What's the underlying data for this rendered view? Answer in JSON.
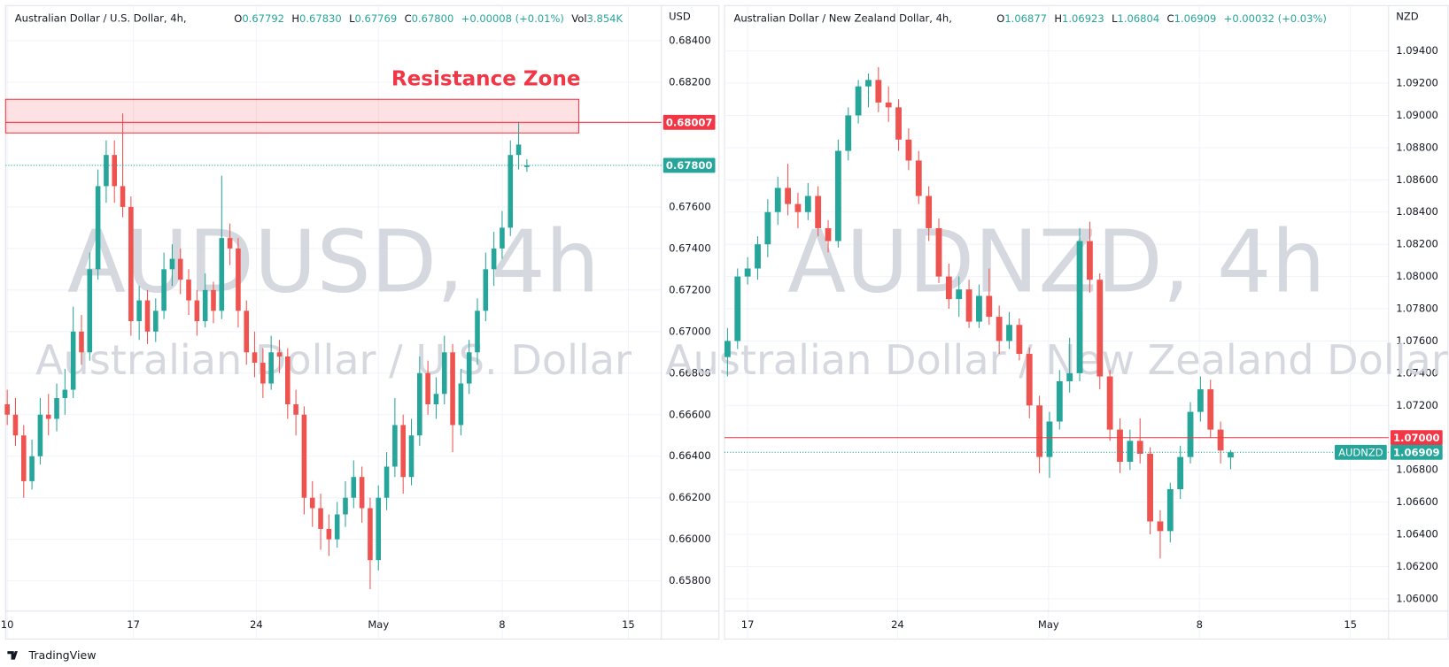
{
  "chart_data": [
    {
      "type": "candlestick",
      "title": "Australian Dollar / U.S. Dollar, 4h,",
      "ohlc_header": [
        {
          "key": "O",
          "value": "0.67792"
        },
        {
          "key": "H",
          "value": "0.67830"
        },
        {
          "key": "L",
          "value": "0.67769"
        },
        {
          "key": "C",
          "value": "0.67800"
        }
      ],
      "change": "+0.00008 (+0.01%)",
      "volume": {
        "key": "Vol",
        "value": "3.854K"
      },
      "currency": "USD",
      "watermark": "AUDUSD, 4h",
      "watermark_subtitle": "Australian Dollar / U.S. Dollar",
      "up_color": "#26a69a",
      "down_color": "#ef5350",
      "open": [
        0.6665,
        0.666,
        0.665,
        0.6628,
        0.664,
        0.666,
        0.6658,
        0.6668,
        0.6672,
        0.67,
        0.669,
        0.673,
        0.677,
        0.6785,
        0.677,
        0.676,
        0.6705,
        0.6715,
        0.67,
        0.671,
        0.673,
        0.6735,
        0.6725,
        0.6715,
        0.6705,
        0.672,
        0.671,
        0.6745,
        0.674,
        0.671,
        0.669,
        0.6685,
        0.6675,
        0.669,
        0.6688,
        0.6665,
        0.666,
        0.662,
        0.6615,
        0.6605,
        0.66,
        0.6612,
        0.662,
        0.663,
        0.6615,
        0.659,
        0.662,
        0.6635,
        0.6655,
        0.663,
        0.665,
        0.668,
        0.6665,
        0.667,
        0.669,
        0.6655,
        0.6675,
        0.669,
        0.671,
        0.673,
        0.674,
        0.675,
        0.6785,
        0.67792
      ],
      "high": [
        0.6672,
        0.6668,
        0.6655,
        0.6648,
        0.6668,
        0.667,
        0.6675,
        0.6682,
        0.6712,
        0.6708,
        0.6738,
        0.6778,
        0.6792,
        0.6792,
        0.6805,
        0.6765,
        0.6722,
        0.672,
        0.6716,
        0.6738,
        0.6742,
        0.674,
        0.673,
        0.672,
        0.6728,
        0.6724,
        0.6775,
        0.6752,
        0.6745,
        0.6715,
        0.67,
        0.6692,
        0.6698,
        0.6696,
        0.6692,
        0.6672,
        0.6664,
        0.6628,
        0.6622,
        0.6612,
        0.6618,
        0.6628,
        0.6638,
        0.6635,
        0.662,
        0.6626,
        0.6642,
        0.6668,
        0.666,
        0.6658,
        0.6688,
        0.6686,
        0.6678,
        0.6698,
        0.6694,
        0.6682,
        0.6696,
        0.6716,
        0.6738,
        0.6748,
        0.6758,
        0.6792,
        0.6801,
        0.6783
      ],
      "low": [
        0.6655,
        0.6645,
        0.662,
        0.6624,
        0.6636,
        0.665,
        0.6652,
        0.666,
        0.6668,
        0.6684,
        0.6686,
        0.6725,
        0.6762,
        0.6762,
        0.6755,
        0.6698,
        0.6696,
        0.6694,
        0.6695,
        0.6706,
        0.6722,
        0.6718,
        0.6708,
        0.6698,
        0.6702,
        0.6704,
        0.6706,
        0.6732,
        0.6702,
        0.6684,
        0.6678,
        0.6668,
        0.6672,
        0.668,
        0.6658,
        0.665,
        0.6612,
        0.6606,
        0.6595,
        0.6592,
        0.6596,
        0.6606,
        0.6615,
        0.6608,
        0.6576,
        0.6585,
        0.6614,
        0.663,
        0.6622,
        0.6626,
        0.6645,
        0.666,
        0.6658,
        0.6665,
        0.6642,
        0.665,
        0.667,
        0.6684,
        0.6705,
        0.6722,
        0.6735,
        0.6746,
        0.6778,
        0.67769
      ],
      "close": [
        0.666,
        0.665,
        0.6628,
        0.664,
        0.666,
        0.6658,
        0.6668,
        0.6672,
        0.67,
        0.669,
        0.673,
        0.677,
        0.6785,
        0.677,
        0.676,
        0.6705,
        0.6715,
        0.67,
        0.671,
        0.673,
        0.6735,
        0.6725,
        0.6715,
        0.6705,
        0.672,
        0.671,
        0.6745,
        0.674,
        0.671,
        0.669,
        0.6685,
        0.6675,
        0.669,
        0.6688,
        0.6665,
        0.666,
        0.662,
        0.6615,
        0.6605,
        0.66,
        0.6612,
        0.662,
        0.663,
        0.6615,
        0.659,
        0.662,
        0.6635,
        0.6655,
        0.663,
        0.665,
        0.668,
        0.6665,
        0.667,
        0.669,
        0.6655,
        0.6675,
        0.669,
        0.671,
        0.673,
        0.674,
        0.675,
        0.6785,
        0.679,
        0.678
      ],
      "xlim": [
        -0.2,
        79.3
      ],
      "xticks": [
        {
          "value": 0,
          "label": "10"
        },
        {
          "value": 15.3,
          "label": "17"
        },
        {
          "value": 30.2,
          "label": "24"
        },
        {
          "value": 45,
          "label": "May"
        },
        {
          "value": 60,
          "label": "8"
        },
        {
          "value": 75.3,
          "label": "15"
        }
      ],
      "ylim": [
        0.6552,
        0.6856
      ],
      "yticks": [
        {
          "value": 0.658,
          "label": "0.65800"
        },
        {
          "value": 0.66,
          "label": "0.66000"
        },
        {
          "value": 0.662,
          "label": "0.66200"
        },
        {
          "value": 0.664,
          "label": "0.66400"
        },
        {
          "value": 0.666,
          "label": "0.66600"
        },
        {
          "value": 0.668,
          "label": "0.66800"
        },
        {
          "value": 0.67,
          "label": "0.67000"
        },
        {
          "value": 0.672,
          "label": "0.67200"
        },
        {
          "value": 0.674,
          "label": "0.67400"
        },
        {
          "value": 0.676,
          "label": "0.67600"
        },
        {
          "value": 0.678,
          "label": "0.67800"
        },
        {
          "value": 0.68,
          "label": "0.68000"
        },
        {
          "value": 0.682,
          "label": "0.68200"
        },
        {
          "value": 0.684,
          "label": "0.68400"
        }
      ],
      "grid": true,
      "price_lines": [
        {
          "value": 0.68007,
          "label": "0.68007",
          "color": "#f23645",
          "style": "solid"
        },
        {
          "value": 0.678,
          "label": "0.67800",
          "color": "#26a69a",
          "style": "dotted"
        }
      ],
      "zones": [
        {
          "label": "Resistance Zone",
          "from": 0.67956,
          "to": 0.68118,
          "x_end": 69.3,
          "color": "#f23645"
        }
      ]
    },
    {
      "type": "candlestick",
      "title": "Australian Dollar / New Zealand Dollar, 4h,",
      "ohlc_header": [
        {
          "key": "O",
          "value": "1.06877"
        },
        {
          "key": "H",
          "value": "1.06923"
        },
        {
          "key": "L",
          "value": "1.06804"
        },
        {
          "key": "C",
          "value": "1.06909"
        }
      ],
      "change": "+0.00032 (+0.03%)",
      "currency": "NZD",
      "watermark": "AUDNZD, 4h",
      "watermark_subtitle": "Australian Dollar / New Zealand Dollar",
      "up_color": "#26a69a",
      "down_color": "#ef5350",
      "open": [
        1.075,
        1.076,
        1.08,
        1.0805,
        1.082,
        1.084,
        1.0855,
        1.0845,
        1.084,
        1.085,
        1.083,
        1.0822,
        1.0878,
        1.09,
        1.0918,
        1.0922,
        1.0908,
        1.0905,
        1.0885,
        1.0872,
        1.085,
        1.083,
        1.08,
        1.0786,
        1.0792,
        1.0772,
        1.0788,
        1.0775,
        1.076,
        1.077,
        1.0752,
        1.072,
        1.0688,
        1.071,
        1.0735,
        1.074,
        1.0822,
        1.0798,
        1.0738,
        1.0705,
        1.0685,
        1.0698,
        1.069,
        1.0648,
        1.0642,
        1.0668,
        1.0688,
        1.0716,
        1.073,
        1.0705,
        1.06877
      ],
      "high": [
        1.0768,
        1.0805,
        1.0812,
        1.0825,
        1.0848,
        1.0862,
        1.087,
        1.0852,
        1.0858,
        1.0856,
        1.0835,
        1.0885,
        1.0905,
        1.0922,
        1.0926,
        1.093,
        1.0918,
        1.091,
        1.0892,
        1.0878,
        1.0856,
        1.0836,
        1.0808,
        1.08,
        1.0798,
        1.0795,
        1.0805,
        1.0782,
        1.0778,
        1.0774,
        1.0756,
        1.0726,
        1.0716,
        1.0742,
        1.0762,
        1.083,
        1.0834,
        1.0802,
        1.0742,
        1.0712,
        1.0705,
        1.0712,
        1.0694,
        1.0655,
        1.0672,
        1.0695,
        1.0722,
        1.0738,
        1.0736,
        1.071,
        1.06923
      ],
      "low": [
        1.0738,
        1.0755,
        1.0795,
        1.0798,
        1.0812,
        1.0832,
        1.0838,
        1.083,
        1.0835,
        1.0825,
        1.0815,
        1.0818,
        1.0872,
        1.0895,
        1.0905,
        1.0902,
        1.0896,
        1.0878,
        1.0866,
        1.0845,
        1.0822,
        1.0796,
        1.078,
        1.0775,
        1.0768,
        1.0768,
        1.077,
        1.0752,
        1.0755,
        1.0748,
        1.0712,
        1.0678,
        1.0675,
        1.0705,
        1.0728,
        1.0735,
        1.079,
        1.073,
        1.0698,
        1.0678,
        1.068,
        1.0684,
        1.064,
        1.0625,
        1.0635,
        1.0662,
        1.0684,
        1.071,
        1.07,
        1.0684,
        1.06804
      ],
      "close": [
        1.076,
        1.08,
        1.0805,
        1.082,
        1.084,
        1.0855,
        1.0845,
        1.084,
        1.085,
        1.083,
        1.0822,
        1.0878,
        1.09,
        1.0918,
        1.0922,
        1.0908,
        1.0905,
        1.0885,
        1.0872,
        1.085,
        1.083,
        1.08,
        1.0786,
        1.0792,
        1.0772,
        1.0788,
        1.0775,
        1.076,
        1.077,
        1.0752,
        1.072,
        1.0688,
        1.071,
        1.0735,
        1.074,
        1.0822,
        1.0798,
        1.0738,
        1.0705,
        1.0685,
        1.0698,
        1.069,
        1.0648,
        1.0642,
        1.0668,
        1.0688,
        1.0716,
        1.073,
        1.0705,
        1.0692,
        1.06909
      ],
      "xlim": [
        -0.3,
        65.7
      ],
      "xticks": [
        {
          "value": 2.0,
          "label": "17"
        },
        {
          "value": 16.9,
          "label": "24"
        },
        {
          "value": 31.9,
          "label": "May"
        },
        {
          "value": 46.9,
          "label": "8"
        },
        {
          "value": 61.9,
          "label": "15"
        }
      ],
      "ylim": [
        1.0575,
        1.0967
      ],
      "yticks": [
        {
          "value": 1.06,
          "label": "1.06000"
        },
        {
          "value": 1.062,
          "label": "1.06200"
        },
        {
          "value": 1.064,
          "label": "1.06400"
        },
        {
          "value": 1.066,
          "label": "1.06600"
        },
        {
          "value": 1.068,
          "label": "1.06800"
        },
        {
          "value": 1.07,
          "label": "1.07000"
        },
        {
          "value": 1.072,
          "label": "1.07200"
        },
        {
          "value": 1.074,
          "label": "1.07400"
        },
        {
          "value": 1.076,
          "label": "1.07600"
        },
        {
          "value": 1.078,
          "label": "1.07800"
        },
        {
          "value": 1.08,
          "label": "1.08000"
        },
        {
          "value": 1.082,
          "label": "1.08200"
        },
        {
          "value": 1.084,
          "label": "1.08400"
        },
        {
          "value": 1.086,
          "label": "1.08600"
        },
        {
          "value": 1.088,
          "label": "1.08800"
        },
        {
          "value": 1.09,
          "label": "1.09000"
        },
        {
          "value": 1.092,
          "label": "1.09200"
        },
        {
          "value": 1.094,
          "label": "1.09400"
        }
      ],
      "grid": true,
      "price_lines": [
        {
          "value": 1.07,
          "label": "1.07000",
          "color": "#f23645",
          "style": "solid"
        },
        {
          "value": 1.06909,
          "label": "1.06909",
          "color": "#26a69a",
          "style": "dotted",
          "badge": "AUDNZD"
        }
      ]
    }
  ],
  "footer": {
    "brand": "TradingView"
  }
}
